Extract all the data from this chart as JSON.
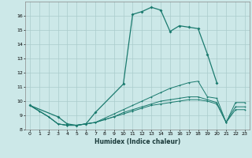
{
  "xlabel": "Humidex (Indice chaleur)",
  "color": "#1a7a6e",
  "bg_color": "#cce8e8",
  "grid_color": "#aacccc",
  "ylim": [
    8,
    17
  ],
  "xlim": [
    -0.5,
    23.5
  ],
  "yticks": [
    8,
    9,
    10,
    11,
    12,
    13,
    14,
    15,
    16
  ],
  "xticks": [
    0,
    1,
    2,
    3,
    4,
    5,
    6,
    7,
    8,
    9,
    10,
    11,
    12,
    13,
    14,
    15,
    16,
    17,
    18,
    19,
    20,
    21,
    22,
    23
  ],
  "main_x": [
    0,
    3,
    4,
    5,
    6,
    7,
    10,
    11,
    12,
    13,
    14,
    15,
    16,
    17,
    18,
    19,
    20
  ],
  "main_y": [
    9.7,
    8.9,
    8.4,
    8.3,
    8.4,
    9.2,
    11.2,
    16.1,
    16.3,
    16.6,
    16.4,
    14.9,
    15.3,
    15.2,
    15.1,
    13.3,
    11.3
  ],
  "upper_x": [
    0,
    1,
    2,
    3,
    4,
    5,
    6,
    7,
    8,
    9,
    10,
    11,
    12,
    13,
    14,
    15,
    16,
    17,
    18,
    19,
    20,
    21,
    22,
    23
  ],
  "upper_y": [
    9.7,
    9.3,
    8.9,
    8.4,
    8.3,
    8.3,
    8.4,
    8.5,
    8.8,
    9.1,
    9.4,
    9.7,
    10.0,
    10.3,
    10.6,
    10.9,
    11.1,
    11.3,
    11.4,
    10.3,
    10.2,
    8.5,
    9.9,
    9.9
  ],
  "mid_x": [
    0,
    1,
    2,
    3,
    4,
    5,
    6,
    7,
    8,
    9,
    10,
    11,
    12,
    13,
    14,
    15,
    16,
    17,
    18,
    19,
    20,
    21,
    22,
    23
  ],
  "mid_y": [
    9.7,
    9.3,
    8.9,
    8.4,
    8.3,
    8.3,
    8.4,
    8.5,
    8.7,
    8.9,
    9.2,
    9.4,
    9.6,
    9.8,
    10.0,
    10.1,
    10.2,
    10.3,
    10.3,
    10.1,
    9.9,
    8.5,
    9.6,
    9.6
  ],
  "lower_x": [
    0,
    1,
    2,
    3,
    4,
    5,
    6,
    7,
    8,
    9,
    10,
    11,
    12,
    13,
    14,
    15,
    16,
    17,
    18,
    19,
    20,
    21,
    22,
    23
  ],
  "lower_y": [
    9.7,
    9.3,
    8.9,
    8.4,
    8.3,
    8.3,
    8.4,
    8.5,
    8.7,
    8.9,
    9.1,
    9.3,
    9.5,
    9.7,
    9.8,
    9.9,
    10.0,
    10.1,
    10.1,
    10.0,
    9.8,
    8.5,
    9.4,
    9.4
  ]
}
